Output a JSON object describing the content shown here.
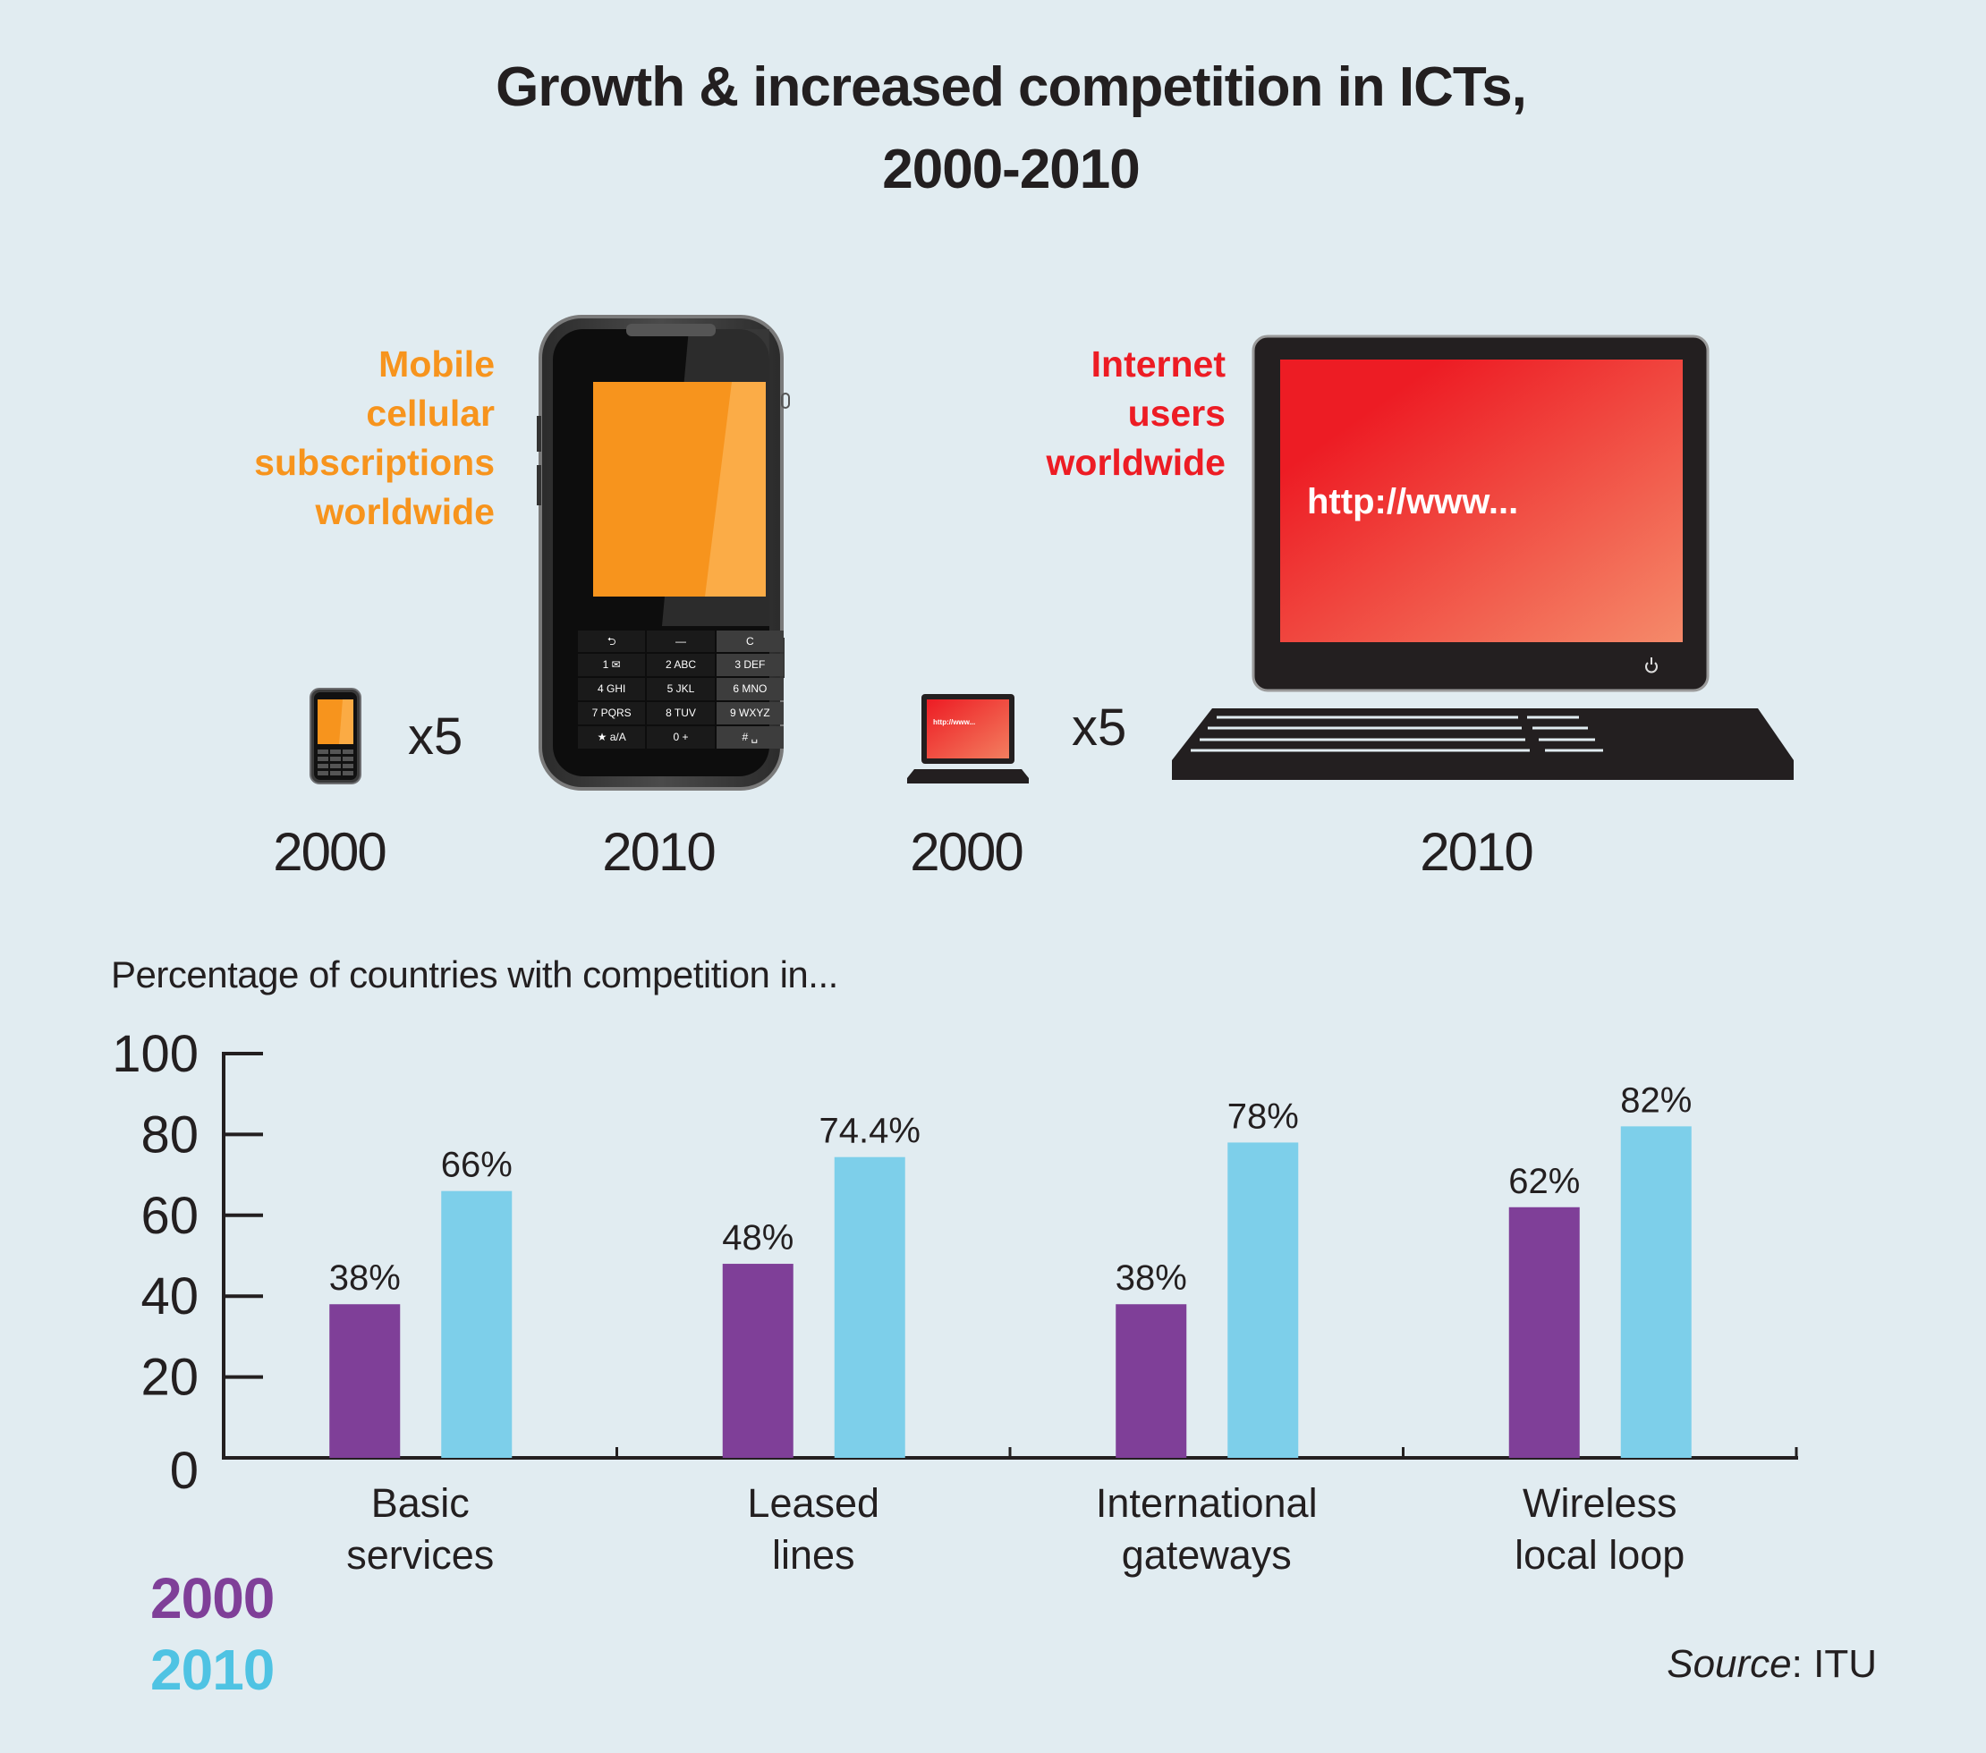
{
  "title": {
    "line1": "Growth & increased competition in ICTs,",
    "line2": "2000-2010"
  },
  "mobile": {
    "label_lines": [
      "Mobile",
      "cellular",
      "subscriptions",
      "worldwide"
    ],
    "multiplier": "x5",
    "year_small": "2000",
    "year_large": "2010",
    "color": "#f7941d",
    "keypad": [
      [
        "⮌",
        "—",
        "C"
      ],
      [
        "1 ✉",
        "2 ABC",
        "3 DEF"
      ],
      [
        "4 GHI",
        "5 JKL",
        "6 MNO"
      ],
      [
        "7 PQRS",
        "8 TUV",
        "9 WXYZ"
      ],
      [
        "★ a/A",
        "0 +",
        "# ␣"
      ]
    ]
  },
  "internet": {
    "label_lines": [
      "Internet",
      "users",
      "worldwide"
    ],
    "multiplier": "x5",
    "year_small": "2000",
    "year_large": "2010",
    "screen_text": "http://www...",
    "color": "#ed1c24"
  },
  "legend": {
    "items": [
      {
        "label": "2000",
        "color": "#7f3f98"
      },
      {
        "label": "2010",
        "color": "#4fc3e3"
      }
    ]
  },
  "source": {
    "prefix": "Source",
    "sep": ":",
    "value": " ITU"
  },
  "chart_data": {
    "type": "bar",
    "title": "Percentage of countries with competition in...",
    "xlabel": "",
    "ylabel": "",
    "ylim": [
      0,
      100
    ],
    "yticks": [
      0,
      20,
      40,
      60,
      80,
      100
    ],
    "grid": false,
    "legend_position": "bottom-left",
    "categories": [
      [
        "Basic",
        "services"
      ],
      [
        "Leased",
        "lines"
      ],
      [
        "International",
        "gateways"
      ],
      [
        "Wireless",
        "local loop"
      ]
    ],
    "series": [
      {
        "name": "2000",
        "color": "#7f3f98",
        "values": [
          38,
          48,
          38,
          62
        ],
        "labels": [
          "38%",
          "48%",
          "38%",
          "62%"
        ]
      },
      {
        "name": "2010",
        "color": "#7dcfea",
        "values": [
          66,
          74.4,
          78,
          82
        ],
        "labels": [
          "66%",
          "74.4%",
          "78%",
          "82%"
        ]
      }
    ]
  }
}
